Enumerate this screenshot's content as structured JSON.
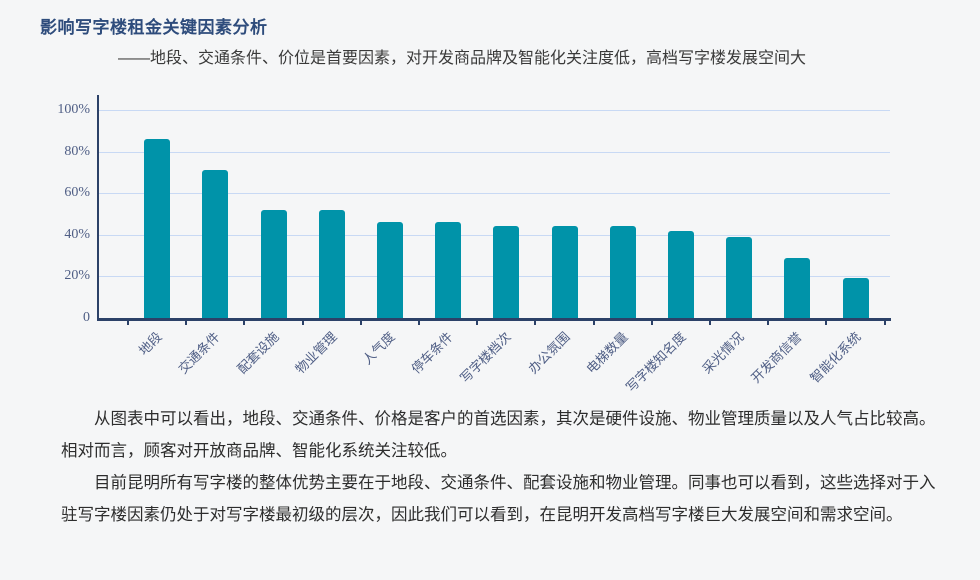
{
  "page": {
    "title": "影响写字楼租金关键因素分析",
    "subtitle": "——地段、交通条件、价位是首要因素，对开发商品牌及智能化关注度低，高档写字楼发展空间大"
  },
  "chart_data": {
    "type": "bar",
    "title": "",
    "categories": [
      "地段",
      "交通条件",
      "配套设施",
      "物业管理",
      "人气度",
      "停车条件",
      "写字楼档次",
      "办公氛围",
      "电梯数量",
      "写字楼知名度",
      "采光情况",
      "开发商信誉",
      "智能化系统"
    ],
    "values": [
      86,
      71,
      52,
      52,
      46,
      46,
      44,
      44,
      44,
      42,
      39,
      29,
      19
    ],
    "xlabel": "",
    "ylabel": "",
    "ylim": [
      0,
      100
    ],
    "y_tick_labels": [
      "100%",
      "80%",
      "60%",
      "40%",
      "20%",
      "0"
    ],
    "y_tick_values": [
      100,
      80,
      60,
      40,
      20,
      0
    ],
    "grid": true,
    "legend": "none",
    "colors": {
      "bar": "#0093a9",
      "axis": "#2c4168",
      "gridline": "#c8d9f4",
      "tick_label": "#4f5e85",
      "title": "#2e4c7c",
      "body_text": "#2d2d2d",
      "background": "#f5f6f7"
    }
  },
  "paragraphs": [
    "从图表中可以看出，地段、交通条件、价格是客户的首选因素，其次是硬件设施、物业管理质量以及人气占比较高。相对而言，顾客对开放商品牌、智能化系统关注较低。",
    "目前昆明所有写字楼的整体优势主要在于地段、交通条件、配套设施和物业管理。同事也可以看到，这些选择对于入驻写字楼因素仍处于对写字楼最初级的层次，因此我们可以看到，在昆明开发高档写字楼巨大发展空间和需求空间。"
  ]
}
